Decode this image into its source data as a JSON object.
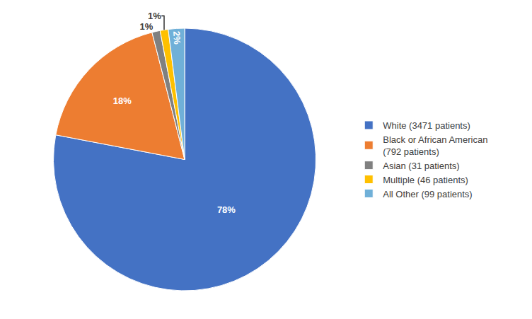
{
  "chart_data": {
    "type": "pie",
    "categories": [
      "White (3471 patients)",
      "Black or African American\n(792 patients)",
      "Asian (31 patients)",
      "Multiple (46 patients)",
      "All Other (99 patients)"
    ],
    "values": [
      78,
      18,
      1,
      1,
      2
    ],
    "value_labels": [
      "78%",
      "18%",
      "1%",
      "1%",
      "2%"
    ],
    "colors": [
      "#4472C4",
      "#ED7D31",
      "#808080",
      "#FFC000",
      "#70B0D8"
    ],
    "data_labels": true,
    "legend": "right"
  }
}
